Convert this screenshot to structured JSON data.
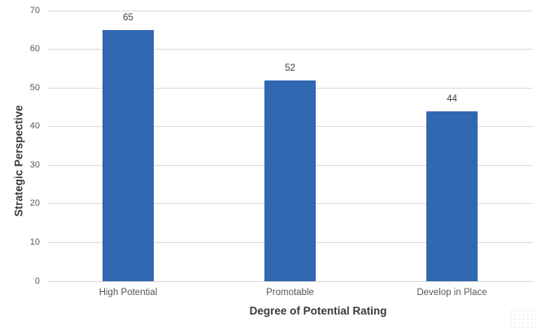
{
  "chart_data": {
    "type": "bar",
    "title": "",
    "categories": [
      "High Potential",
      "Promotable",
      "Develop in Place"
    ],
    "values": [
      65,
      52,
      44
    ],
    "data_labels": [
      "65",
      "52",
      "44"
    ],
    "xlabel": "Degree of Potential Rating",
    "ylabel": "Strategic Perspective",
    "ylim": [
      0,
      70
    ],
    "yticks": [
      0,
      10,
      20,
      30,
      40,
      50,
      60,
      70
    ],
    "grid": true,
    "legend_position": "none",
    "bar_color": "#3267B2"
  },
  "colors": {
    "background": "#FFFFFF",
    "bar": "#3267B2",
    "gridline": "#D9D9D9",
    "tick_label": "#595959",
    "category_label": "#595959",
    "data_label": "#404040",
    "axis_title": "#3A3A3A"
  }
}
